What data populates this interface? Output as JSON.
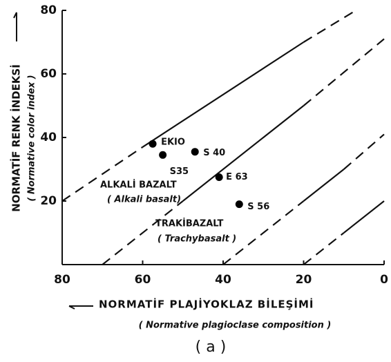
{
  "chart_data": {
    "type": "scatter",
    "y_label": "NORMATİF RENK İNDEKSİ",
    "y_label_en": "( Normative color index )",
    "x_label": "NORMATİF PLAJİYOKLAZ BİLEŞİMİ",
    "x_label_en": "( Normative plagioclase composition )",
    "caption": "( a )",
    "regions": [
      "ALKALİ BAZALT",
      "( Alkali basalt)",
      "TRAKİBAZALT",
      "( Trachybasalt )"
    ],
    "x": [
      57.5,
      55,
      47,
      41,
      36
    ],
    "values": [
      38,
      34.5,
      35.5,
      27.5,
      19
    ],
    "point_labels": [
      "EKIO",
      "S35",
      "S 40",
      "E 63",
      "S 56"
    ],
    "color": "#000000",
    "xlim": [
      80,
      0
    ],
    "ylim": [
      0,
      80
    ],
    "xticks": [
      80,
      60,
      40,
      20,
      0
    ],
    "yticks": [
      20,
      40,
      60,
      80
    ],
    "boundaries": [
      {
        "style": "dashed",
        "x": [
          80,
          60
        ],
        "y": [
          20,
          37
        ]
      },
      {
        "style": "solid",
        "x": [
          60,
          20
        ],
        "y": [
          37,
          70
        ]
      },
      {
        "style": "dashed",
        "x": [
          20,
          7
        ],
        "y": [
          70,
          80
        ]
      },
      {
        "style": "dashed",
        "x": [
          70,
          50
        ],
        "y": [
          0,
          20
        ]
      },
      {
        "style": "solid",
        "x": [
          50,
          20
        ],
        "y": [
          20,
          50
        ]
      },
      {
        "style": "dashed",
        "x": [
          20,
          0
        ],
        "y": [
          50,
          71
        ]
      },
      {
        "style": "dashed",
        "x": [
          40,
          20
        ],
        "y": [
          0,
          20
        ]
      },
      {
        "style": "solid",
        "x": [
          20,
          10
        ],
        "y": [
          20,
          30
        ]
      },
      {
        "style": "dashed",
        "x": [
          10,
          0
        ],
        "y": [
          30,
          41
        ]
      },
      {
        "style": "dashed",
        "x": [
          20,
          10
        ],
        "y": [
          0,
          10
        ]
      },
      {
        "style": "solid",
        "x": [
          10,
          0
        ],
        "y": [
          10,
          20
        ]
      }
    ]
  }
}
